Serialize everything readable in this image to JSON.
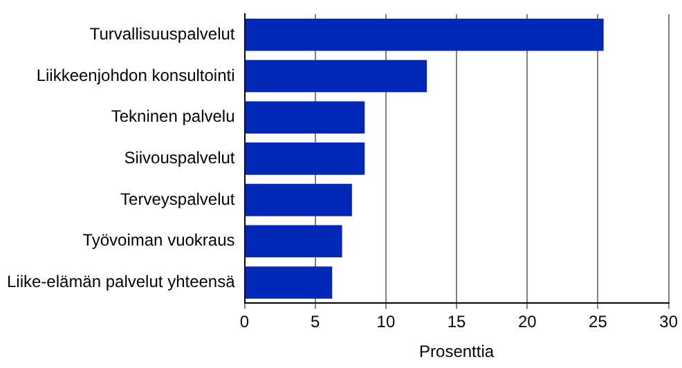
{
  "chart_data": {
    "type": "bar",
    "orientation": "horizontal",
    "xlabel": "Prosenttia",
    "categories": [
      "Turvallisuuspalvelut",
      "Liikkeenjohdon konsultointi",
      "Tekninen palvelu",
      "Siivouspalvelut",
      "Terveyspalvelut",
      "Työvoiman vuokraus",
      "Liike-elämän palvelut yhteensä"
    ],
    "values": [
      25.4,
      12.9,
      8.5,
      8.5,
      7.6,
      6.9,
      6.2
    ],
    "color": "#0028b8",
    "xlim": [
      0,
      30
    ],
    "xticks": [
      0,
      5,
      10,
      15,
      20,
      25,
      30
    ],
    "grid": "x"
  }
}
